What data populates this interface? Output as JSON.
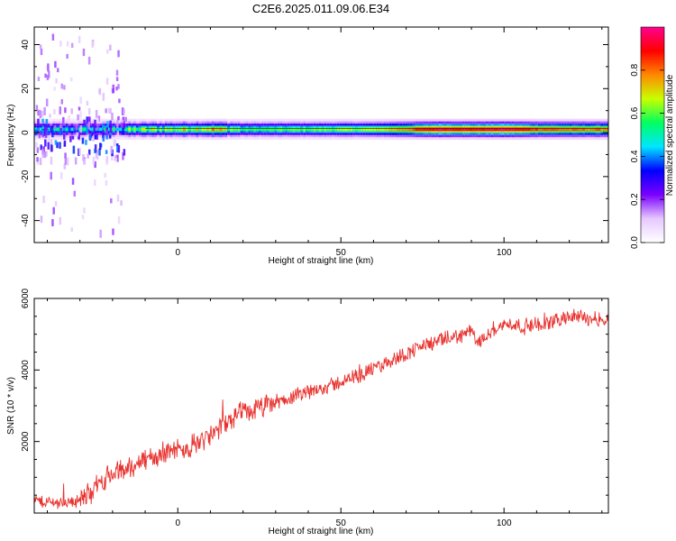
{
  "figure": {
    "title": "C2E6.2025.011.09.06.E34"
  },
  "chart_data": [
    {
      "type": "heatmap",
      "xlabel": "Height of straight line (km)",
      "ylabel": "Frequency (Hz)",
      "xlim": [
        -44,
        132
      ],
      "ylim": [
        -50,
        48
      ],
      "x_ticks": [
        0,
        50,
        100
      ],
      "y_ticks": [
        -40,
        -20,
        0,
        20,
        40
      ],
      "band_center_hz": 1.5,
      "colorbar": {
        "label": "Normalized spectral amplitude",
        "range": [
          0,
          1
        ],
        "ticks": [
          "0.0",
          "0.2",
          "0.4",
          "0.6",
          "0.8"
        ],
        "colormap": [
          "#ffffff",
          "#e6c8ff",
          "#7a00ff",
          "#0000ff",
          "#00e6ff",
          "#00ff60",
          "#c8ff00",
          "#ff8800",
          "#ff0000",
          "#ff0090"
        ]
      },
      "amplitude_profile": {
        "x": [
          -44,
          -35,
          -28,
          -20,
          -10,
          0,
          10,
          20,
          40,
          60,
          80,
          90,
          100,
          110,
          120,
          132
        ],
        "peak": [
          0.45,
          0.45,
          0.45,
          0.5,
          0.6,
          0.65,
          0.75,
          0.55,
          0.6,
          0.65,
          0.95,
          0.9,
          0.95,
          0.85,
          0.8,
          0.8
        ]
      }
    },
    {
      "type": "line",
      "xlabel": "Height of straight line (km)",
      "ylabel": "SNR (10 * v/v)",
      "xlim": [
        -44,
        132
      ],
      "ylim": [
        0,
        6000
      ],
      "x_ticks": [
        0,
        50,
        100
      ],
      "y_ticks": [
        2000,
        4000,
        6000
      ],
      "color": "#e8322e",
      "series": [
        {
          "x": [
            -44,
            -40,
            -35,
            -30,
            -26,
            -22,
            -18,
            -14,
            -10,
            -6,
            -2,
            2,
            6,
            10,
            14,
            18,
            22,
            26,
            30,
            34,
            38,
            42,
            46,
            50,
            54,
            58,
            62,
            66,
            70,
            74,
            78,
            82,
            86,
            90,
            92,
            94,
            98,
            102,
            106,
            110,
            112,
            114,
            118,
            122,
            126,
            132
          ],
          "y": [
            350,
            300,
            300,
            350,
            650,
            1000,
            1150,
            1300,
            1500,
            1600,
            1800,
            1700,
            2000,
            2150,
            2450,
            2700,
            2850,
            2950,
            3100,
            3200,
            3300,
            3450,
            3550,
            3650,
            3800,
            3950,
            4100,
            4300,
            4450,
            4650,
            4750,
            4850,
            4950,
            5100,
            4700,
            5000,
            5200,
            5300,
            5200,
            5300,
            5150,
            5350,
            5450,
            5500,
            5450,
            5400
          ]
        }
      ]
    }
  ]
}
